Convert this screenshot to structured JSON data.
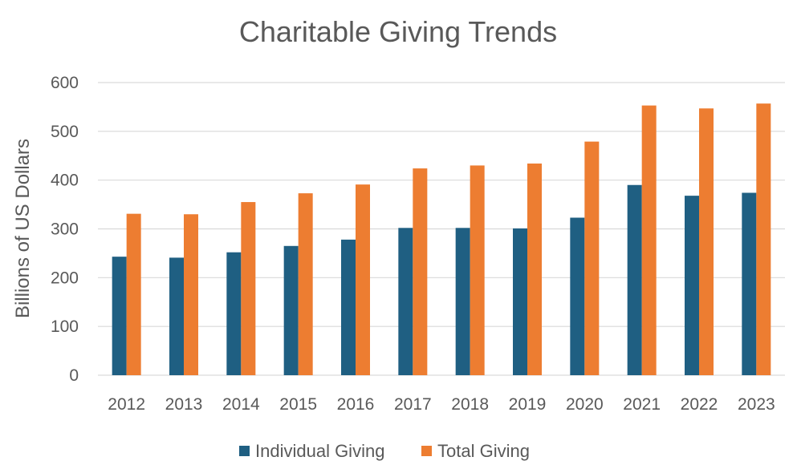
{
  "chart_data": {
    "type": "bar",
    "title": "Charitable Giving Trends",
    "xlabel": "",
    "ylabel": "Billions of US Dollars",
    "ylim": [
      0,
      600
    ],
    "yticks": [
      0,
      100,
      200,
      300,
      400,
      500,
      600
    ],
    "grid": true,
    "legend_position": "bottom",
    "categories": [
      "2012",
      "2013",
      "2014",
      "2015",
      "2016",
      "2017",
      "2018",
      "2019",
      "2020",
      "2021",
      "2022",
      "2023"
    ],
    "series": [
      {
        "name": "Individual Giving",
        "color": "#1F5F82",
        "values": [
          243,
          241,
          252,
          265,
          278,
          302,
          302,
          301,
          323,
          390,
          368,
          374
        ]
      },
      {
        "name": "Total Giving",
        "color": "#ED7D31",
        "values": [
          331,
          330,
          355,
          373,
          391,
          424,
          430,
          434,
          479,
          553,
          547,
          557
        ]
      }
    ]
  }
}
